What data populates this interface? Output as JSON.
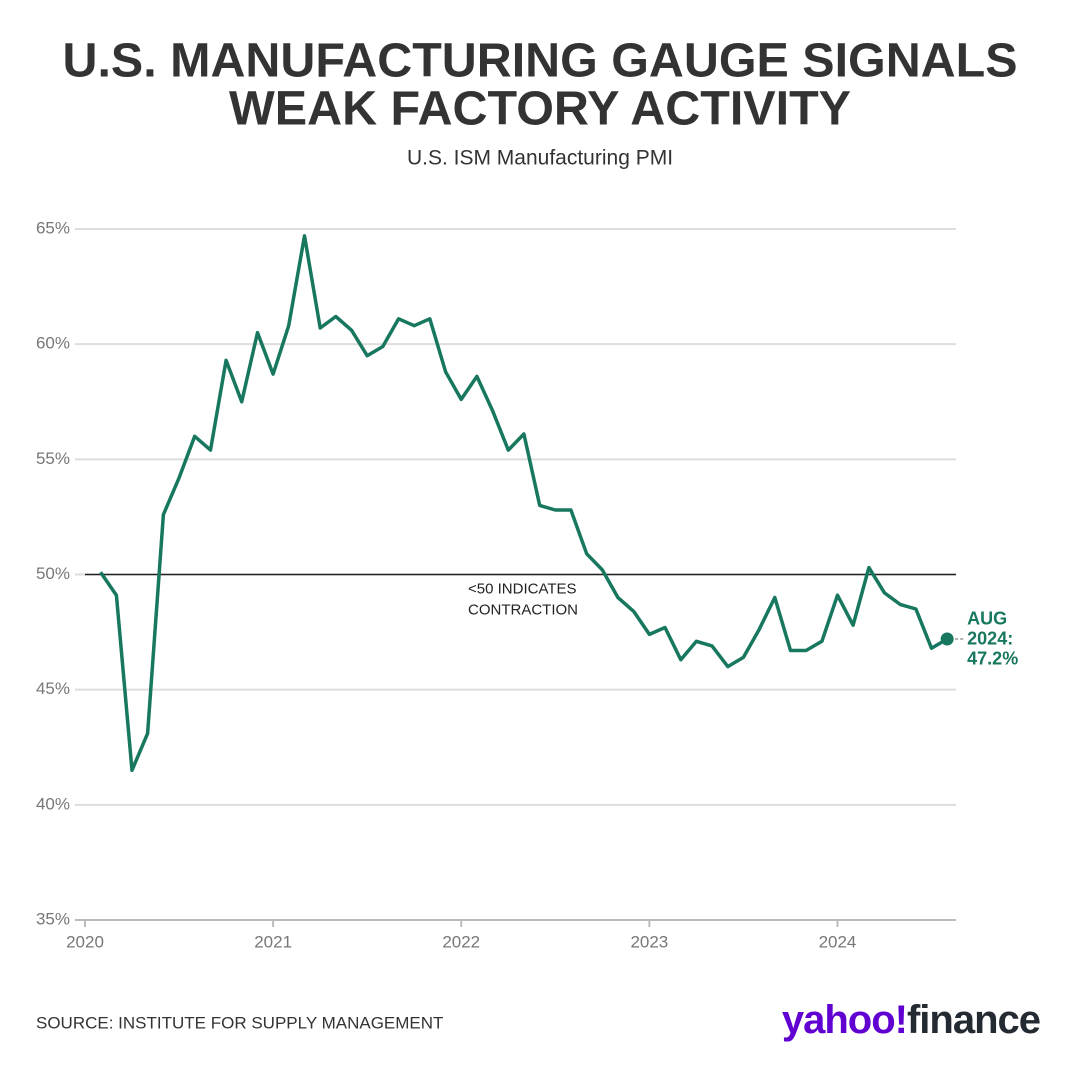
{
  "chart_data": {
    "type": "line",
    "title": [
      "U.S. MANUFACTURING GAUGE SIGNALS",
      "WEAK FACTORY ACTIVITY"
    ],
    "subtitle": "U.S. ISM Manufacturing PMI",
    "x": [
      2020.083,
      2020.167,
      2020.25,
      2020.333,
      2020.417,
      2020.5,
      2020.583,
      2020.667,
      2020.75,
      2020.833,
      2020.917,
      2021,
      2021.083,
      2021.167,
      2021.25,
      2021.333,
      2021.417,
      2021.5,
      2021.583,
      2021.667,
      2021.75,
      2021.833,
      2021.917,
      2022,
      2022.083,
      2022.167,
      2022.25,
      2022.333,
      2022.417,
      2022.5,
      2022.583,
      2022.667,
      2022.75,
      2022.833,
      2022.917,
      2023,
      2023.083,
      2023.167,
      2023.25,
      2023.333,
      2023.417,
      2023.5,
      2023.583,
      2023.667,
      2023.75,
      2023.833,
      2023.917,
      2024,
      2024.083,
      2024.167,
      2024.25,
      2024.333,
      2024.417,
      2024.5,
      2024.583
    ],
    "values": [
      50.1,
      49.1,
      41.5,
      43.1,
      52.6,
      54.2,
      56.0,
      55.4,
      59.3,
      57.5,
      60.5,
      58.7,
      60.8,
      64.7,
      60.7,
      61.2,
      60.6,
      59.5,
      59.9,
      61.1,
      60.8,
      61.1,
      58.8,
      57.6,
      58.6,
      57.1,
      55.4,
      56.1,
      53.0,
      52.8,
      52.8,
      50.9,
      50.2,
      49.0,
      48.4,
      47.4,
      47.7,
      46.3,
      47.1,
      46.9,
      46.0,
      46.4,
      47.6,
      49.0,
      46.7,
      46.7,
      47.1,
      49.1,
      47.8,
      50.3,
      49.2,
      48.7,
      48.5,
      46.8,
      47.2
    ],
    "color": "#17775f",
    "xlim": [
      2020,
      2024.63
    ],
    "xticks": [
      2020,
      2021,
      2022,
      2023,
      2024
    ],
    "ylim": [
      35,
      65
    ],
    "yticks": [
      {
        "value": 35,
        "label": "35%"
      },
      {
        "value": 40,
        "label": "40%"
      },
      {
        "value": 45,
        "label": "45%"
      },
      {
        "value": 50,
        "label": "50%"
      },
      {
        "value": 55,
        "label": "55%"
      },
      {
        "value": 60,
        "label": "60%"
      },
      {
        "value": 65,
        "label": "65%"
      }
    ],
    "grid": true,
    "reference_line": 50,
    "reference_label": [
      "<50 INDICATES",
      "CONTRACTION"
    ],
    "end_label": [
      "AUG",
      "2024:",
      "47.2%"
    ],
    "source": "SOURCE: INSTITUTE FOR SUPPLY MANAGEMENT",
    "brand": [
      "yahoo!",
      "finance"
    ]
  }
}
